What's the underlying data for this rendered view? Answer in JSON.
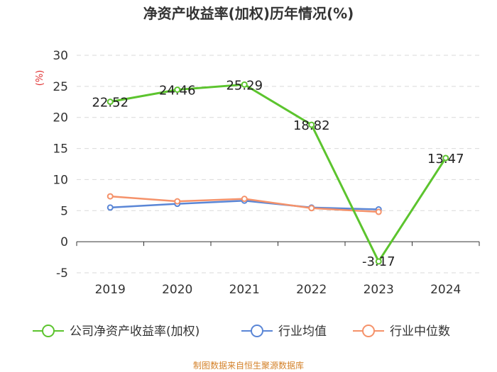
{
  "chart_data": {
    "type": "line",
    "title": "净资产收益率(加权)历年情况(%)",
    "ylabel": "(%)",
    "xlabel": "",
    "categories": [
      "2019",
      "2020",
      "2021",
      "2022",
      "2023",
      "2024"
    ],
    "ylim": [
      -5,
      30
    ],
    "yticks": [
      -5,
      0,
      5,
      10,
      15,
      20,
      25,
      30
    ],
    "grid": "horizontal-dashed",
    "legend_position": "bottom",
    "series": [
      {
        "name": "公司净资产收益率(加权)",
        "color": "#5cc42e",
        "values": [
          22.52,
          24.46,
          25.29,
          18.82,
          -3.17,
          13.47
        ],
        "labels": [
          "22.52",
          "24.46",
          "25.29",
          "18.82",
          "-3.17",
          "13.47"
        ]
      },
      {
        "name": "行业均值",
        "color": "#5a86d6",
        "values": [
          5.5,
          6.1,
          6.6,
          5.5,
          5.2,
          null
        ]
      },
      {
        "name": "行业中位数",
        "color": "#f5926a",
        "values": [
          7.3,
          6.5,
          6.9,
          5.4,
          4.8,
          null
        ]
      }
    ]
  },
  "source_text": "制图数据来自恒生聚源数据库"
}
